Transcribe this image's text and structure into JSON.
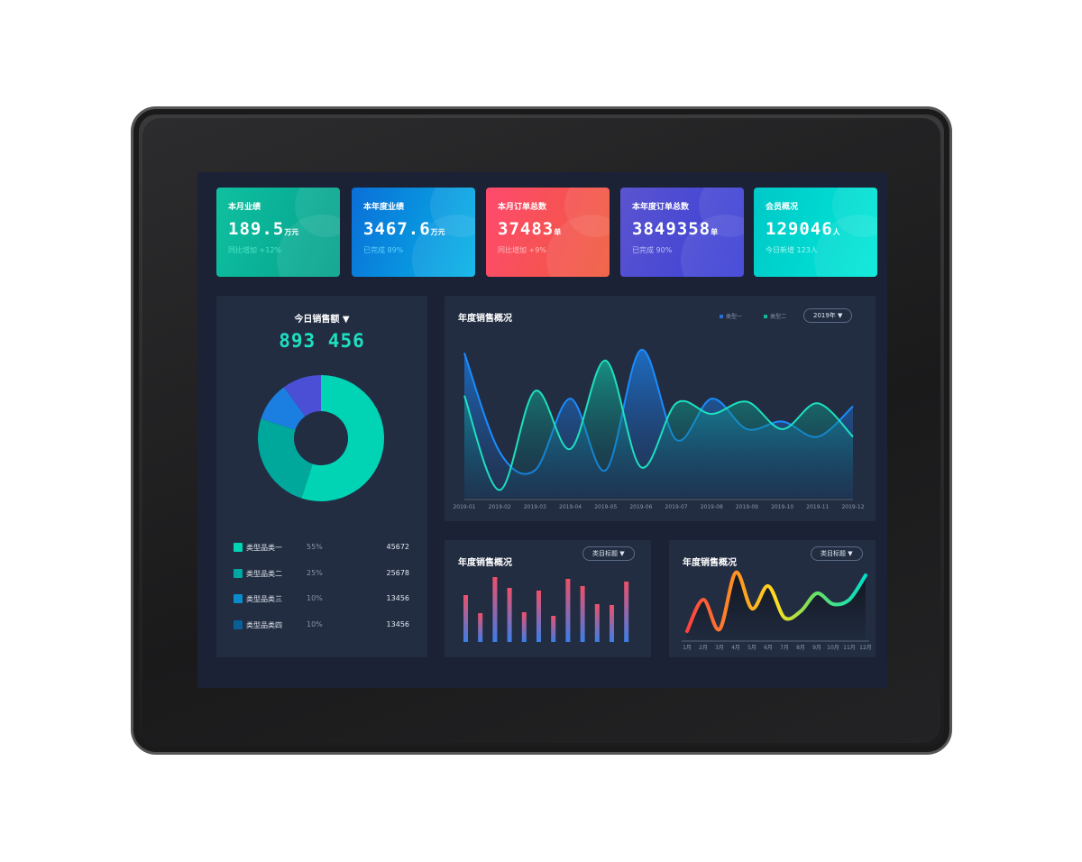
{
  "cards": [
    {
      "title": "本月业绩",
      "value": "189.5",
      "unit": "万元",
      "sub": "同比增加 +12%",
      "colors": [
        "#0fc0a0",
        "#05a08c"
      ],
      "subColor": "#5ff0d0"
    },
    {
      "title": "本年度业绩",
      "value": "3467.6",
      "unit": "万元",
      "sub": "已完成 89%",
      "colors": [
        "#0a6fd8",
        "#07b4e6"
      ],
      "subColor": "#6fe0ff"
    },
    {
      "title": "本月订单总数",
      "value": "37483",
      "unit": "单",
      "sub": "同比增加 +9%",
      "colors": [
        "#ff4a6e",
        "#ee5a3c"
      ],
      "subColor": "#ffd0d0"
    },
    {
      "title": "本年度订单总数",
      "value": "3849358",
      "unit": "单",
      "sub": "已完成 90%",
      "colors": [
        "#5a54d0",
        "#3a3fd6"
      ],
      "subColor": "#d8dcff"
    },
    {
      "title": "会员概况",
      "value": "129046",
      "unit": "人",
      "sub": "今日新增 123人",
      "colors": [
        "#00c8c8",
        "#00e8d8"
      ],
      "subColor": "#c8fff8"
    }
  ],
  "today": {
    "title": "今日销售额 ▼",
    "value": "893 456",
    "legend": [
      {
        "name": "类型品类一",
        "pct": "55%",
        "value": "45672",
        "color": "#00d4b4"
      },
      {
        "name": "类型品类二",
        "pct": "25%",
        "value": "25678",
        "color": "#00a8a4"
      },
      {
        "name": "类型品类三",
        "pct": "10%",
        "value": "13456",
        "color": "#0a8ccc"
      },
      {
        "name": "类型品类四",
        "pct": "10%",
        "value": "13456",
        "color": "#0a5f96"
      }
    ]
  },
  "chart_data": [
    {
      "type": "area",
      "title": "年度销售概况",
      "select": "2019年 ▼",
      "x": [
        "2019-01",
        "2019-02",
        "2019-03",
        "2019-04",
        "2019-05",
        "2019-06",
        "2019-07",
        "2019-08",
        "2019-09",
        "2019-10",
        "2019-11",
        "2019-12"
      ],
      "ylim": [
        0,
        100
      ],
      "series": [
        {
          "name": "类型一",
          "color": "#1a8cff",
          "values": [
            95,
            30,
            18,
            65,
            18,
            97,
            38,
            65,
            45,
            50,
            40,
            60
          ]
        },
        {
          "name": "类型二",
          "color": "#1de0c0",
          "values": [
            67,
            5,
            70,
            32,
            90,
            20,
            62,
            55,
            63,
            45,
            62,
            40
          ]
        }
      ]
    },
    {
      "type": "bar",
      "title": "年度销售概况",
      "select": "类目标题 ▼",
      "values": [
        52,
        32,
        72,
        60,
        33,
        57,
        29,
        70,
        62,
        42,
        41,
        67
      ],
      "ylim": [
        0,
        80
      ]
    },
    {
      "type": "line",
      "title": "年度销售概况",
      "select": "类目标题 ▼",
      "x": [
        "1月",
        "2月",
        "3月",
        "4月",
        "5月",
        "6月",
        "7月",
        "8月",
        "9月",
        "10月",
        "11月",
        "12月"
      ],
      "values": [
        10,
        45,
        12,
        75,
        35,
        60,
        25,
        32,
        52,
        40,
        45,
        72
      ],
      "ylim": [
        0,
        80
      ]
    }
  ]
}
